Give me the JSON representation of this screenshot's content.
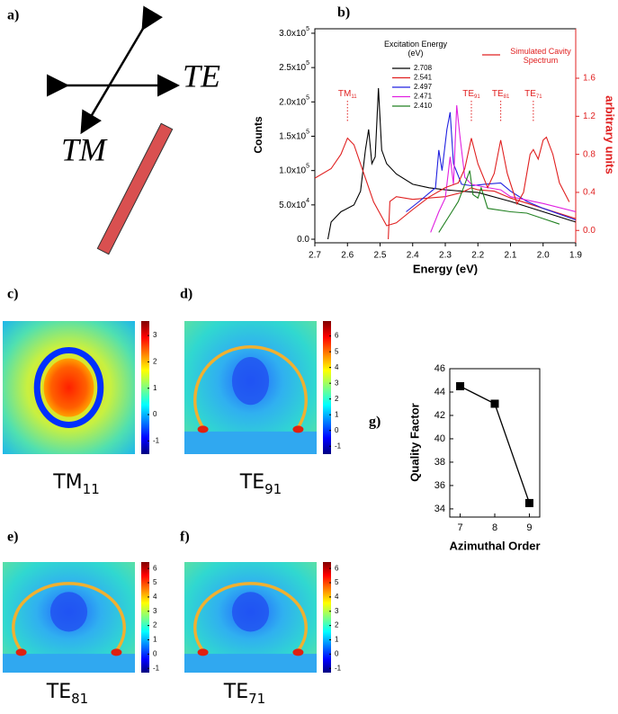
{
  "panel_labels": [
    "a)",
    "b)",
    "c)",
    "d)",
    "e)",
    "f)",
    "g)"
  ],
  "diagram": {
    "te_label": "TE",
    "tm_label": "TM"
  },
  "chart_data": [
    {
      "type": "line",
      "xlabel": "Energy (eV)",
      "ylabel": "Counts",
      "y2label": "arbitrary units",
      "xlim": [
        2.7,
        1.9
      ],
      "xticks": [
        2.7,
        2.6,
        2.5,
        2.4,
        2.3,
        2.2,
        2.1,
        {
          "value": 2,
          "label": "2.0"
        },
        1.9
      ],
      "ylim": [
        -5200,
        306500
      ],
      "yticks": [
        {
          "value": 0,
          "label": "0.0"
        },
        {
          "value": 50000,
          "label": "5.0x10",
          "exp": "4"
        },
        {
          "value": 100000,
          "label": "1.0x10",
          "exp": "5"
        },
        {
          "value": 150000,
          "label": "1.5x10",
          "exp": "5"
        },
        {
          "value": 200000,
          "label": "2.0x10",
          "exp": "5"
        },
        {
          "value": 250000,
          "label": "2.5x10",
          "exp": "5"
        },
        {
          "value": 300000,
          "label": "3.0x10",
          "exp": "5"
        }
      ],
      "y2lim": [
        -0.13,
        2.12
      ],
      "y2ticks": [
        {
          "value": 0,
          "label": "0.0"
        },
        0.4,
        0.8,
        1.2,
        1.6
      ],
      "legend_title": "Excitation Energy (eV)",
      "series": [
        {
          "name": "2.708",
          "color": "#000000",
          "x": [
            2.66,
            2.65,
            2.62,
            2.58,
            2.56,
            2.545,
            2.535,
            2.525,
            2.515,
            2.505,
            2.495,
            2.48,
            2.45,
            2.4,
            2.35,
            2.3,
            2.25,
            2.2,
            2.1,
            2.0,
            1.9
          ],
          "values": [
            0,
            25000,
            40000,
            50000,
            70000,
            130000,
            160000,
            110000,
            120000,
            220000,
            130000,
            110000,
            95000,
            80000,
            75000,
            72000,
            70000,
            68000,
            55000,
            40000,
            25000
          ]
        },
        {
          "name": "2.541",
          "color": "#e02020",
          "x": [
            2.475,
            2.47,
            2.45,
            2.4,
            2.3,
            2.25,
            2.22,
            2.2,
            2.15,
            2.1,
            2.0,
            1.9
          ],
          "values": [
            0,
            55000,
            62000,
            58000,
            62000,
            68000,
            75000,
            72000,
            70000,
            60000,
            45000,
            30000
          ]
        },
        {
          "name": "2.497",
          "color": "#2020e0",
          "x": [
            2.42,
            2.38,
            2.33,
            2.32,
            2.31,
            2.295,
            2.285,
            2.275,
            2.25,
            2.22,
            2.18,
            2.13,
            2.1,
            2.05,
            2.0,
            1.9
          ],
          "values": [
            40000,
            55000,
            75000,
            130000,
            100000,
            160000,
            185000,
            110000,
            80000,
            78000,
            80000,
            82000,
            70000,
            55000,
            45000,
            28000
          ]
        },
        {
          "name": "2.471",
          "color": "#e020e0",
          "x": [
            2.345,
            2.32,
            2.3,
            2.285,
            2.275,
            2.265,
            2.255,
            2.24,
            2.22,
            2.18,
            2.13,
            2.1,
            2.0,
            1.9
          ],
          "values": [
            10000,
            40000,
            60000,
            120000,
            80000,
            195000,
            150000,
            90000,
            80000,
            76000,
            72000,
            62000,
            52000,
            40000
          ]
        },
        {
          "name": "2.410",
          "color": "#208020",
          "x": [
            2.32,
            2.28,
            2.26,
            2.24,
            2.225,
            2.215,
            2.2,
            2.19,
            2.17,
            2.1,
            2.05,
            2.0,
            1.95
          ],
          "values": [
            10000,
            40000,
            55000,
            80000,
            100000,
            65000,
            60000,
            75000,
            45000,
            40000,
            38000,
            30000,
            22000
          ]
        },
        {
          "name": "Simulated Cavity Spectrum",
          "color": "#e02020",
          "axis": "y2",
          "x": [
            2.7,
            2.65,
            2.62,
            2.6,
            2.58,
            2.55,
            2.52,
            2.48,
            2.45,
            2.4,
            2.35,
            2.3,
            2.26,
            2.24,
            2.22,
            2.2,
            2.17,
            2.15,
            2.13,
            2.11,
            2.08,
            2.06,
            2.04,
            2.03,
            2.015,
            2.0,
            1.99,
            1.97,
            1.95,
            1.92
          ],
          "values": [
            0.55,
            0.65,
            0.8,
            0.97,
            0.9,
            0.6,
            0.3,
            0.05,
            0.08,
            0.22,
            0.35,
            0.45,
            0.5,
            0.65,
            0.97,
            0.7,
            0.45,
            0.6,
            0.95,
            0.6,
            0.28,
            0.4,
            0.8,
            0.85,
            0.75,
            0.95,
            0.98,
            0.8,
            0.5,
            0.3
          ]
        }
      ],
      "annotations": [
        {
          "text": "TM",
          "sub": "11",
          "x": 2.6
        },
        {
          "text": "TE",
          "sub": "91",
          "x": 2.22
        },
        {
          "text": "TE",
          "sub": "81",
          "x": 2.13
        },
        {
          "text": "TE",
          "sub": "71",
          "x": 2.03
        }
      ]
    },
    {
      "type": "line",
      "xlabel": "Azimuthal Order",
      "ylabel": "Quality Factor",
      "color": "#000000",
      "x": [
        7,
        8,
        9
      ],
      "values": [
        44.5,
        43,
        34.5
      ],
      "xlim": [
        6.7,
        9.3
      ],
      "xticks": [
        7,
        8,
        9
      ],
      "ylim": [
        33.3,
        46
      ],
      "yticks": [
        34,
        36,
        38,
        40,
        42,
        44,
        46
      ]
    }
  ],
  "field_maps": [
    {
      "label": "TM",
      "subscript": "11",
      "clim": [
        -1.5,
        3.55
      ],
      "cticks": [
        -1,
        0,
        1,
        2,
        3
      ]
    },
    {
      "label": "TE",
      "subscript": "91",
      "clim": [
        -1.5,
        6.95
      ],
      "cticks": [
        -1,
        0,
        1,
        2,
        3,
        4,
        5,
        6
      ]
    },
    {
      "label": "TE",
      "subscript": "81",
      "clim": [
        -1.3,
        6.45
      ],
      "cticks": [
        -1,
        0,
        1,
        2,
        3,
        4,
        5,
        6
      ]
    },
    {
      "label": "TE",
      "subscript": "71",
      "clim": [
        -1.3,
        6.45
      ],
      "cticks": [
        -1,
        0,
        1,
        2,
        3,
        4,
        5,
        6
      ]
    }
  ]
}
